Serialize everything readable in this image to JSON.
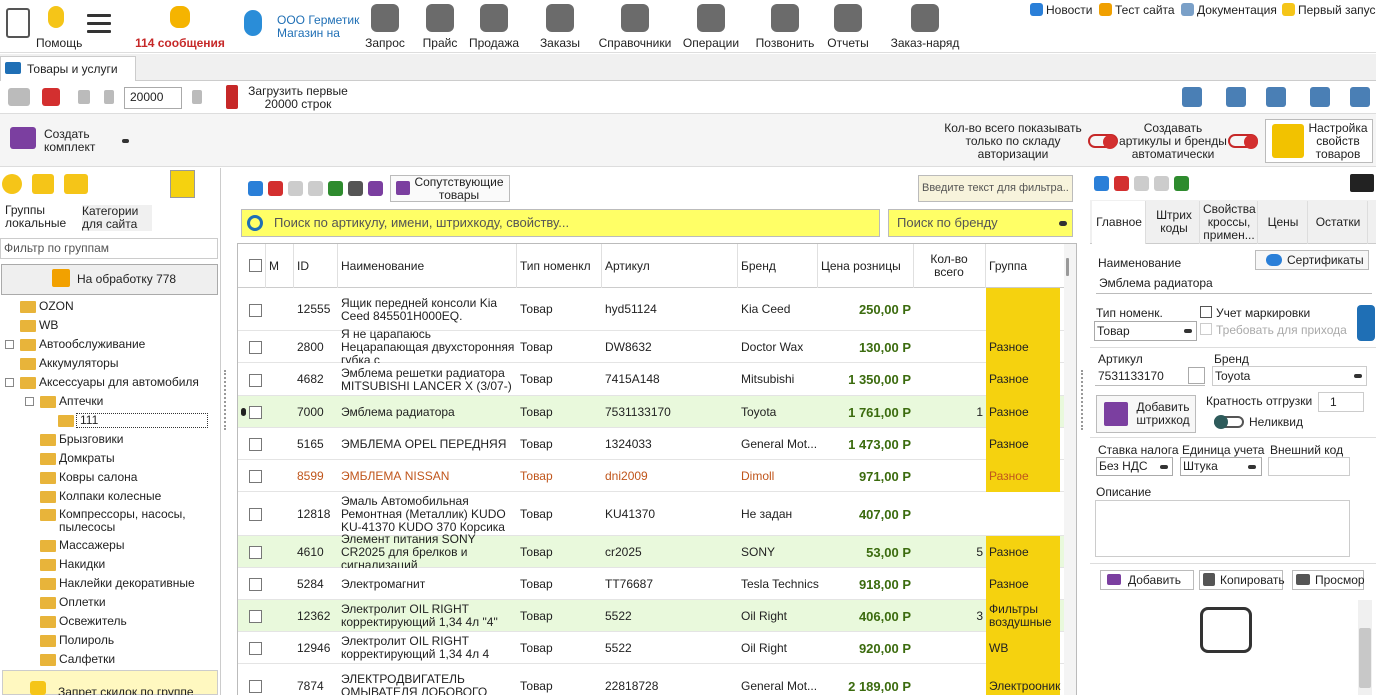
{
  "top_toolbar": {
    "help": "Помощь",
    "messages": "114 сообщения",
    "company": "ООО Герметик Магазин на",
    "items": [
      "Запрос",
      "Прайс",
      "Продажа",
      "Заказы",
      "Справочники",
      "Операции",
      "Позвонить",
      "Отчеты",
      "Заказ-наряд"
    ],
    "links": [
      "Новости",
      "Тест сайта",
      "Документация",
      "Первый запуск"
    ]
  },
  "tabs": [
    "Товары и услуги"
  ],
  "toolbar": {
    "rows_count": "20000",
    "load_label": "Загрузить первые 20000 строк",
    "create_kit": "Создать комплект",
    "qty_option": "Кол-во всего показывать только по складу авторизации",
    "auto_option": "Создавать артикулы и бренды автоматически",
    "settings": "Настройка свойств товаров"
  },
  "left_panel": {
    "tabs": [
      "Группы локальные",
      "Категории для сайта"
    ],
    "filter": "Фильтр  по группам",
    "processing": "На обработку 778",
    "tree": [
      {
        "label": "OZON",
        "level": 1
      },
      {
        "label": "WB",
        "level": 1
      },
      {
        "label": "Автообслуживание",
        "level": 1,
        "expander": "+"
      },
      {
        "label": "Аккумуляторы",
        "level": 1,
        "discount": true
      },
      {
        "label": "Аксессуары для автомобиля",
        "level": 1,
        "expander": "-"
      },
      {
        "label": "Аптечки",
        "level": 2,
        "expander": "-"
      },
      {
        "label": "111",
        "level": 3,
        "selected": true
      },
      {
        "label": "Брызговики",
        "level": 2
      },
      {
        "label": "Домкраты",
        "level": 2
      },
      {
        "label": "Ковры салона",
        "level": 2
      },
      {
        "label": "Колпаки колесные",
        "level": 2
      },
      {
        "label": "Компрессоры, насосы, пылесосы",
        "level": 2
      },
      {
        "label": "Массажеры",
        "level": 2
      },
      {
        "label": "Накидки",
        "level": 2,
        "discount": true
      },
      {
        "label": "Наклейки декоративные",
        "level": 2
      },
      {
        "label": "Оплетки",
        "level": 2
      },
      {
        "label": "Освежитель",
        "level": 2
      },
      {
        "label": "Полироль",
        "level": 2
      },
      {
        "label": "Салфетки",
        "level": 2
      }
    ],
    "bottom": "Запрет скидок по группе"
  },
  "center": {
    "related": "Сопутствующие товары",
    "filter_placeholder": "Введите текст для фильтра..",
    "search_placeholder": "Поиск по артикулу, имени, штрихкоду, свойству...",
    "brand_placeholder": "Поиск по бренду",
    "table": {
      "headers": [
        "М",
        "ID",
        "Наименование",
        "Тип номенкл",
        "Артикул",
        "Бренд",
        "Цена розницы",
        "Кол-во всего",
        "Группа"
      ],
      "rows": [
        {
          "id": "12555",
          "name": "Ящик передней консоли Kia Ceed 845501H000EQ.",
          "type": "Товар",
          "article": "hyd51124",
          "brand": "Kia Ceed",
          "price": "250,00 Р",
          "group_fill": "#f5d20f"
        },
        {
          "id": "2800",
          "name": "Я не царапаюсь Нецарапающая двухсторонняя губка с",
          "type": "Товар",
          "article": "DW8632",
          "brand": "Doctor Wax",
          "price": "130,00 Р",
          "group": "Разное",
          "group_fill": "#f5d20f"
        },
        {
          "id": "4682",
          "name": "Эмблема решетки радиатора MITSUBISHI LANCER X (3/07-)",
          "type": "Товар",
          "article": "7415A148",
          "brand": "Mitsubishi",
          "price": "1 350,00 Р",
          "group": "Разное",
          "group_fill": "#f5d20f"
        },
        {
          "id": "7000",
          "name": "Эмблема радиатора",
          "type": "Товар",
          "article": "7531133170",
          "brand": "Toyota",
          "price": "1 761,00 Р",
          "qty": "1",
          "group": "Разное",
          "group_fill": "#f5d20f",
          "row_fill": "#e9f9dc",
          "current": true
        },
        {
          "id": "5165",
          "name": "ЭМБЛЕМА OPEL ПЕРЕДНЯЯ",
          "type": "Товар",
          "article": "1324033",
          "brand": "General Mot...",
          "price": "1 473,00 Р",
          "group": "Разное",
          "group_fill": "#f5d20f"
        },
        {
          "id": "8599",
          "name": "ЭМБЛЕМА NISSAN",
          "type": "Товар",
          "article": "dni2009",
          "brand": "Dimoll",
          "price": "971,00 Р",
          "group": "Разное",
          "group_fill": "#f5d20f",
          "text_color": "#c0561c"
        },
        {
          "id": "12818",
          "name": "Эмаль Автомобильная Ремонтная (Металлик) KUDO KU-41370 KUDO 370 Корсика",
          "type": "Товар",
          "article": "KU41370",
          "brand": "Не задан",
          "price": "407,00 Р"
        },
        {
          "id": "4610",
          "name": "Элемент питания SONY CR2025 для брелков и сигнализаций",
          "type": "Товар",
          "article": "cr2025",
          "brand": "SONY",
          "price": "53,00 Р",
          "qty": "5",
          "group": "Разное",
          "group_fill": "#f5d20f",
          "row_fill": "#e9f9dc"
        },
        {
          "id": "5284",
          "name": "Электромагнит",
          "type": "Товар",
          "article": "TT76687",
          "brand": "Tesla Technics",
          "price": "918,00 Р",
          "group": "Разное",
          "group_fill": "#f5d20f"
        },
        {
          "id": "12362",
          "name": "Электролит OIL RIGHT корректирующий 1,34 4л \"4\"",
          "type": "Товар",
          "article": "5522",
          "brand": "Oil Right",
          "price": "406,00 Р",
          "qty": "3",
          "group": "Фильтры воздушные",
          "group_fill": "#f5d20f",
          "row_fill": "#e9f9dc"
        },
        {
          "id": "12946",
          "name": "Электролит OIL RIGHT корректирующий 1,34 4л 4",
          "type": "Товар",
          "article": "5522",
          "brand": "Oil Right",
          "price": "920,00 Р",
          "group": "WB",
          "group_fill": "#f5d20f"
        },
        {
          "id": "7874",
          "name": "ЭЛЕКТРОДВИГАТЕЛЬ ОМЫВАТЕЛЯ ЛОБОВОГО",
          "type": "Товар",
          "article": "22818728",
          "brand": "General Mot...",
          "price": "2 189,00 Р",
          "group": "Электрооник",
          "group_fill": "#f5d20f"
        }
      ]
    }
  },
  "right_panel": {
    "tabs": [
      "Главное",
      "Штрих коды",
      "Свойства кроссы, примен...",
      "Цены",
      "Остатки"
    ],
    "name_label": "Наименование",
    "certificates": "Сертификаты",
    "name_value": "Эмблема радиатора",
    "type_label": "Тип номенк.",
    "type_value": "Товар",
    "marking": "Учет маркировки",
    "require": "Требовать для прихода",
    "article_label": "Артикул",
    "article_value": "7531133170",
    "brand_label": "Бренд",
    "brand_value": "Toyota",
    "add_barcode": "Добавить штрихкод",
    "multiplicity_label": "Кратность отгрузки",
    "multiplicity_value": "1",
    "illiquid": "Неликвид",
    "tax_label": "Ставка налога",
    "tax_value": "Без НДС",
    "unit_label": "Единица учета",
    "unit_value": "Штука",
    "external_label": "Внешний код",
    "description_label": "Описание",
    "add": "Добавить",
    "copy": "Копировать",
    "view": "Просмор"
  }
}
